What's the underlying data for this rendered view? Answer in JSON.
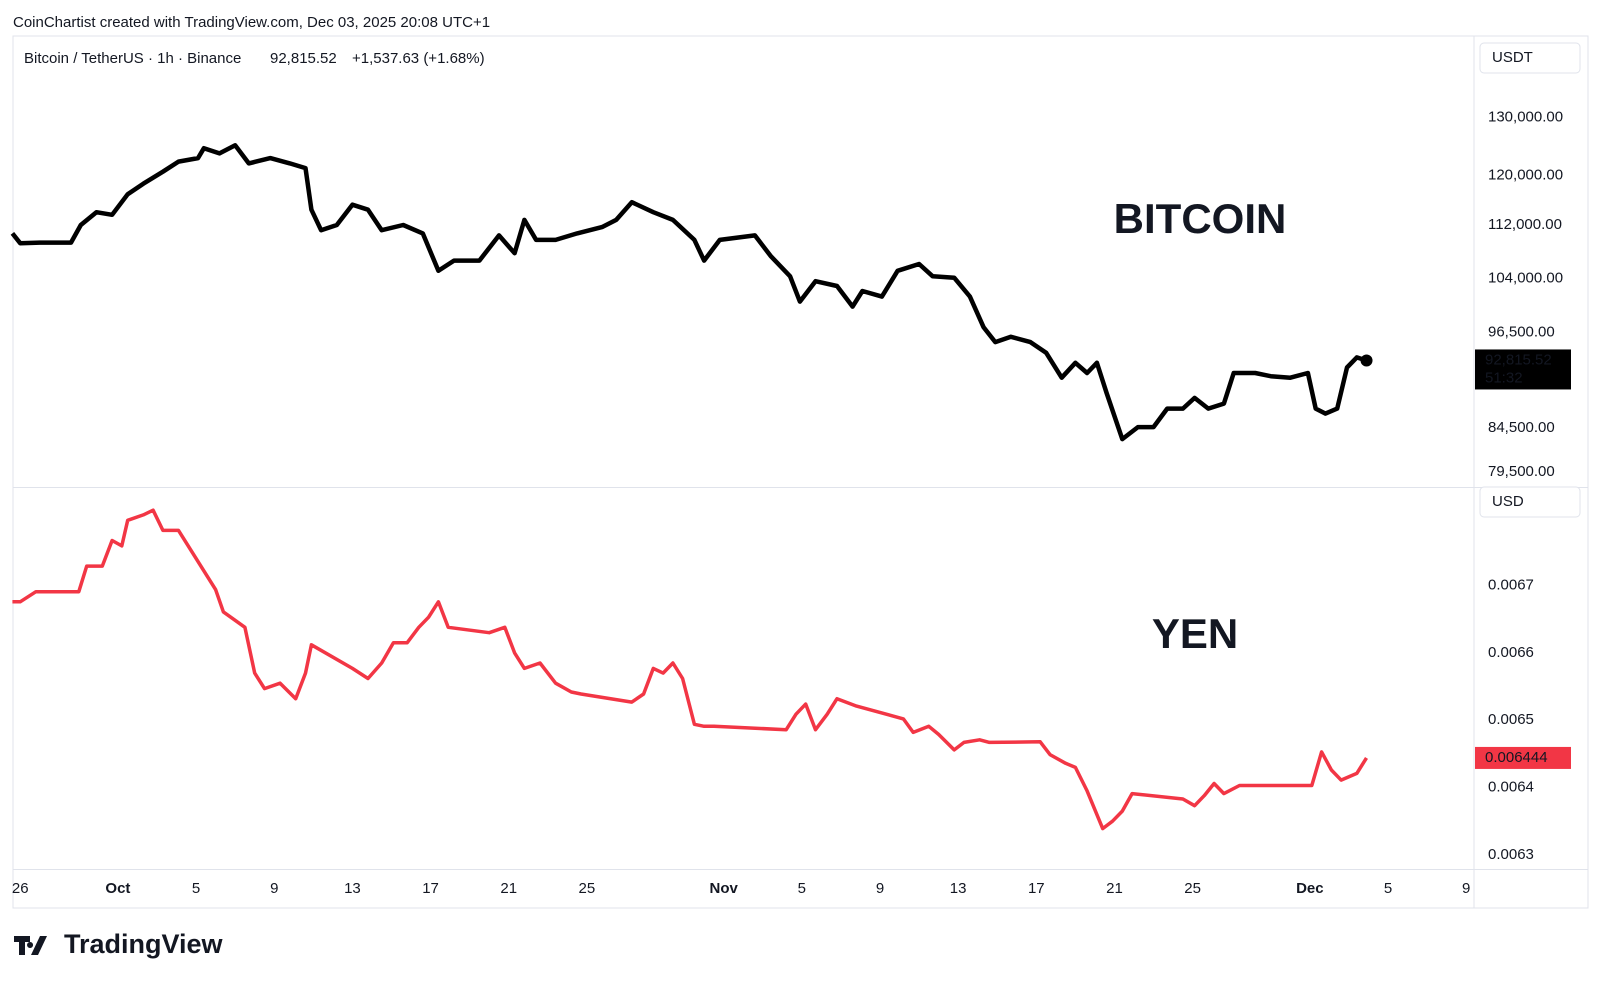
{
  "header": "CoinChartist created with TradingView.com, Dec 03, 2025 20:08 UTC+1",
  "footer": "TradingView",
  "chart_data": [
    {
      "type": "line",
      "title": "Bitcoin / TetherUS · 1h · Binance",
      "legend_values": [
        "92,815.52",
        "+1,537.63 (+1.68%)"
      ],
      "annotation": "BITCOIN",
      "unit": "USDT",
      "price_tag": "92,815.52",
      "countdown": "51:32",
      "log_scale": true,
      "grid": false,
      "end_marker": true,
      "xlim": [
        -0.37,
        74.4
      ],
      "x": [
        -0.4,
        0,
        1.0,
        2.6,
        3.1,
        3.9,
        4.7,
        5.5,
        6.3,
        7.3,
        8.1,
        9.1,
        9.4,
        10.2,
        11.0,
        11.7,
        12.8,
        13.8,
        14.6,
        14.9,
        15.4,
        16.2,
        17.0,
        17.8,
        18.5,
        19.6,
        20.6,
        21.4,
        22.2,
        23.5,
        24.5,
        25.3,
        25.8,
        26.4,
        27.4,
        28.5,
        29.8,
        30.5,
        31.3,
        32.4,
        33.4,
        34.5,
        35.0,
        35.8,
        37.6,
        38.4,
        39.4,
        39.9,
        40.7,
        41.8,
        42.6,
        43.1,
        44.1,
        44.9,
        46.0,
        46.7,
        47.8,
        48.6,
        49.3,
        49.9,
        50.7,
        51.7,
        52.5,
        53.3,
        54.0,
        54.6,
        55.1,
        55.6,
        56.4,
        57.2,
        58.0,
        58.7,
        59.5,
        60.1,
        60.8,
        61.6,
        62.1,
        63.2,
        64.0,
        65.0,
        65.9,
        66.3,
        66.8,
        67.4,
        67.9,
        68.4,
        68.9
      ],
      "series": [
        {
          "name": "Bitcoin",
          "color": "#000000",
          "values": [
            110700,
            109200,
            109300,
            109300,
            112000,
            114000,
            113600,
            116900,
            118600,
            120600,
            122300,
            122900,
            124600,
            123700,
            125100,
            122000,
            122900,
            122000,
            121200,
            114400,
            111200,
            112000,
            115200,
            114400,
            111200,
            112000,
            110700,
            105100,
            106600,
            106600,
            110400,
            107700,
            112800,
            109700,
            109700,
            110700,
            111700,
            112800,
            115600,
            114000,
            112800,
            109700,
            106600,
            109700,
            110400,
            107300,
            104300,
            100700,
            103600,
            102900,
            100000,
            102200,
            101400,
            105100,
            106100,
            104300,
            104100,
            101400,
            97200,
            95200,
            95900,
            95200,
            93800,
            90600,
            92500,
            91200,
            92500,
            88700,
            83200,
            84600,
            84600,
            86800,
            86800,
            88100,
            86800,
            87400,
            91200,
            91200,
            90800,
            90600,
            91200,
            86800,
            86200,
            86800,
            91900,
            93200,
            92800
          ]
        }
      ],
      "ylim": [
        77850,
        145600
      ],
      "yticks": [
        {
          "value": 130000,
          "label": "130,000.00"
        },
        {
          "value": 120000,
          "label": "120,000.00"
        },
        {
          "value": 112000,
          "label": "112,000.00"
        },
        {
          "value": 104000,
          "label": "104,000.00"
        },
        {
          "value": 96500,
          "label": "96,500.00"
        },
        {
          "value": 84500,
          "label": "84,500.00"
        },
        {
          "value": 79500,
          "label": "79,500.00"
        }
      ]
    },
    {
      "type": "line",
      "annotation": "YEN",
      "unit": "USD",
      "price_tag": "0.006444",
      "log_scale": false,
      "grid": false,
      "end_marker": false,
      "xlim": [
        -0.37,
        74.4
      ],
      "x": [
        -0.4,
        0,
        0.8,
        3.0,
        3.4,
        4.2,
        4.7,
        5.2,
        5.5,
        6.3,
        6.8,
        7.3,
        8.1,
        10.0,
        10.4,
        11.5,
        12.0,
        12.5,
        13.3,
        14.1,
        14.6,
        14.9,
        17.0,
        17.8,
        18.5,
        19.1,
        19.8,
        20.4,
        20.9,
        21.4,
        21.9,
        24.0,
        24.8,
        25.3,
        25.8,
        26.6,
        27.4,
        28.2,
        28.7,
        31.3,
        31.9,
        32.4,
        32.9,
        33.4,
        33.9,
        34.5,
        35.0,
        35.5,
        39.2,
        39.7,
        40.2,
        40.7,
        41.3,
        41.8,
        42.8,
        45.2,
        45.7,
        46.5,
        47.0,
        47.8,
        48.3,
        49.1,
        49.6,
        52.2,
        52.7,
        53.5,
        54.0,
        54.6,
        55.4,
        55.9,
        56.4,
        56.9,
        59.5,
        60.1,
        60.6,
        61.1,
        61.6,
        62.4,
        63.7,
        64.8,
        66.1,
        66.6,
        67.1,
        67.6,
        68.4,
        68.9
      ],
      "series": [
        {
          "name": "Yen",
          "color": "#f23645",
          "values": [
            0.006676,
            0.006676,
            0.006691,
            0.006691,
            0.006729,
            0.006729,
            0.006767,
            0.006759,
            0.006797,
            0.006805,
            0.006812,
            0.006782,
            0.006782,
            0.006694,
            0.006661,
            0.006638,
            0.00657,
            0.006547,
            0.006555,
            0.006532,
            0.00657,
            0.006612,
            0.006577,
            0.006562,
            0.006585,
            0.006615,
            0.006615,
            0.006638,
            0.006653,
            0.006676,
            0.006638,
            0.00663,
            0.006638,
            0.0066,
            0.006577,
            0.006585,
            0.006555,
            0.006542,
            0.006539,
            0.006527,
            0.006539,
            0.006577,
            0.00657,
            0.006585,
            0.006562,
            0.006494,
            0.006491,
            0.006491,
            0.006486,
            0.006509,
            0.006524,
            0.006486,
            0.006509,
            0.006532,
            0.006521,
            0.006502,
            0.006482,
            0.006491,
            0.006479,
            0.006456,
            0.006467,
            0.006471,
            0.006467,
            0.006468,
            0.006449,
            0.006436,
            0.00643,
            0.006395,
            0.006339,
            0.00635,
            0.006365,
            0.006391,
            0.006383,
            0.006373,
            0.006388,
            0.006406,
            0.006391,
            0.006403,
            0.006403,
            0.006403,
            0.006403,
            0.006453,
            0.006426,
            0.006411,
            0.006421,
            0.006444
          ]
        }
      ],
      "ylim": [
        0.006279,
        0.006845
      ],
      "yticks": [
        0.0067,
        0.0066,
        0.0065,
        0.0064,
        0.0063
      ],
      "xticks": [
        {
          "value": 0,
          "label": "26"
        },
        {
          "value": 5,
          "label": "Oct"
        },
        {
          "value": 9,
          "label": "5"
        },
        {
          "value": 13,
          "label": "9"
        },
        {
          "value": 17,
          "label": "13"
        },
        {
          "value": 21,
          "label": "17"
        },
        {
          "value": 25,
          "label": "21"
        },
        {
          "value": 29,
          "label": "25"
        },
        {
          "value": 36,
          "label": "Nov"
        },
        {
          "value": 40,
          "label": "5"
        },
        {
          "value": 44,
          "label": "9"
        },
        {
          "value": 48,
          "label": "13"
        },
        {
          "value": 52,
          "label": "17"
        },
        {
          "value": 56,
          "label": "21"
        },
        {
          "value": 60,
          "label": "25"
        },
        {
          "value": 66,
          "label": "Dec"
        },
        {
          "value": 70,
          "label": "5"
        },
        {
          "value": 74,
          "label": "9"
        }
      ]
    }
  ]
}
